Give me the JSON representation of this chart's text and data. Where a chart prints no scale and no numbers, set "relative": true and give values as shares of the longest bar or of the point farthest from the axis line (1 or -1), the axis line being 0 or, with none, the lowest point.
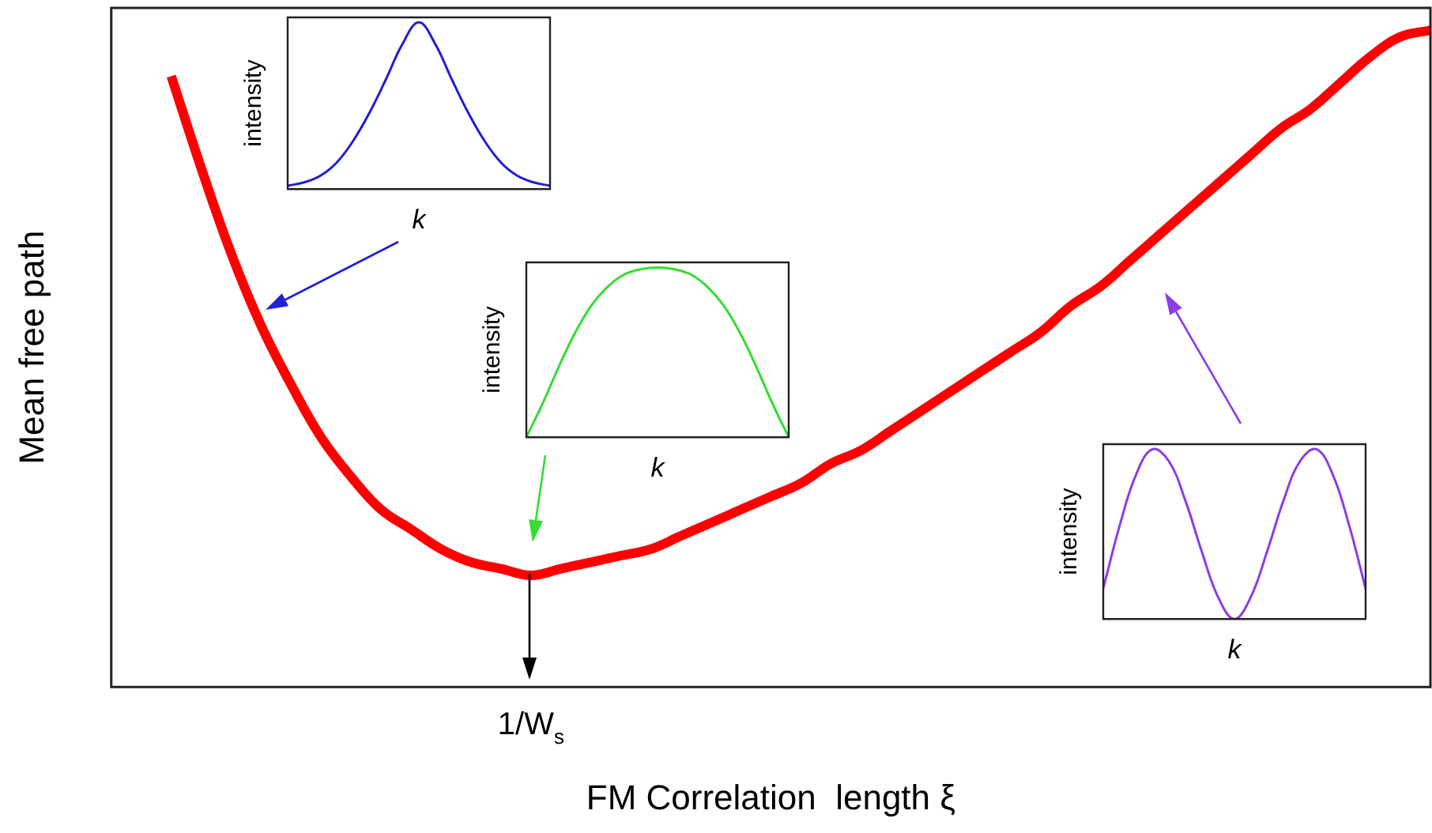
{
  "chart_data": [
    {
      "type": "line",
      "xlabel": "FM Correlation  length ξ",
      "ylabel": "Mean free path",
      "relative": true,
      "color": "#ff0000",
      "annotations": [
        "1/W$_{s}$"
      ],
      "categories": [
        null,
        null,
        null,
        null,
        null,
        null,
        null,
        null,
        null,
        null,
        null,
        null,
        null,
        null,
        null,
        null,
        null,
        null,
        null,
        null,
        null,
        null,
        null,
        null,
        null,
        null,
        null,
        null,
        null,
        null,
        null,
        null,
        null,
        null,
        null,
        null,
        null,
        null,
        null,
        null,
        null,
        null,
        null,
        null,
        null
      ],
      "values": [
        null,
        null,
        0.93,
        0.79,
        0.66,
        0.55,
        0.46,
        0.38,
        0.32,
        0.27,
        0.24,
        0.21,
        0.19,
        0.18,
        0.17,
        0.18,
        0.19,
        0.2,
        0.21,
        0.23,
        0.25,
        0.27,
        0.29,
        0.31,
        0.34,
        0.36,
        0.39,
        0.42,
        0.45,
        0.48,
        0.51,
        0.54,
        0.58,
        0.61,
        0.65,
        0.69,
        0.73,
        0.77,
        0.81,
        0.85,
        0.88,
        0.92,
        0.96,
        0.99,
        1
      ]
    },
    {
      "type": "line",
      "xlabel": "k",
      "ylabel": "intensity",
      "relative": true,
      "color": "#1f1fd6",
      "categories": [
        null,
        null,
        null,
        null,
        null,
        null,
        null,
        null,
        null,
        null,
        null,
        null,
        null,
        null,
        null,
        null,
        null
      ],
      "values": [
        0.02,
        0.04,
        0.08,
        0.16,
        0.29,
        0.46,
        0.66,
        0.87,
        1,
        0.87,
        0.66,
        0.46,
        0.29,
        0.16,
        0.08,
        0.04,
        0.02
      ]
    },
    {
      "type": "line",
      "xlabel": "k",
      "ylabel": "intensity",
      "relative": true,
      "color": "#33dd33",
      "categories": [
        null,
        null,
        null,
        null,
        null,
        null,
        null,
        null,
        null,
        null,
        null,
        null,
        null,
        null,
        null,
        null,
        null
      ],
      "values": [
        0,
        0.2,
        0.42,
        0.62,
        0.78,
        0.89,
        0.96,
        0.99,
        1,
        0.99,
        0.96,
        0.89,
        0.78,
        0.62,
        0.42,
        0.2,
        0
      ]
    },
    {
      "type": "line",
      "xlabel": "k",
      "ylabel": "intensity",
      "relative": true,
      "color": "#8a3de6",
      "categories": [
        null,
        null,
        null,
        null,
        null,
        null,
        null,
        null,
        null,
        null,
        null,
        null,
        null,
        null,
        null,
        null,
        null
      ],
      "values": [
        0.18,
        0.55,
        0.85,
        1,
        0.93,
        0.7,
        0.4,
        0.13,
        0,
        0.13,
        0.4,
        0.7,
        0.93,
        1,
        0.85,
        0.55,
        0.18
      ]
    }
  ]
}
